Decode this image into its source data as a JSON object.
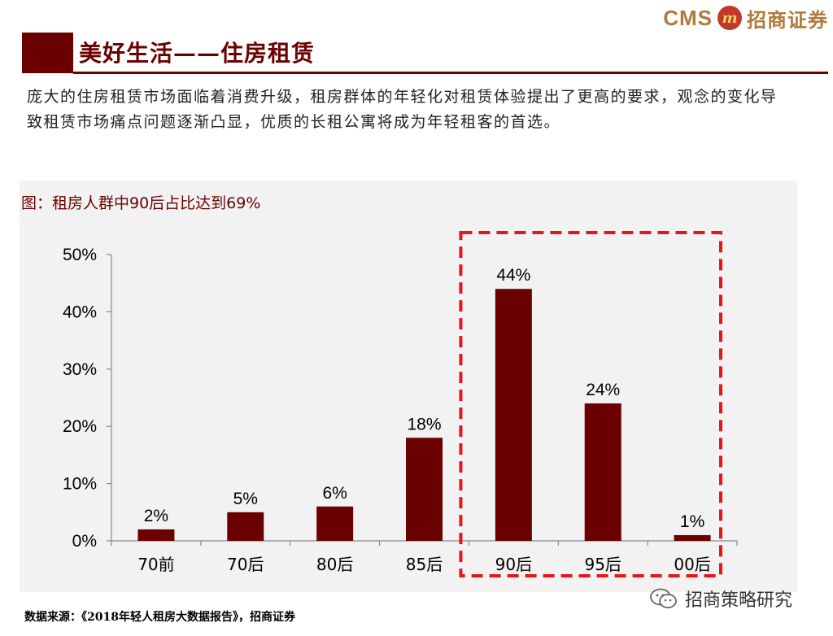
{
  "header": {
    "logo_latin": "CMS",
    "logo_mark": "m",
    "logo_cn": "招商证券",
    "title": "美好生活——住房租赁"
  },
  "intro_text": "庞大的住房租赁市场面临着消费升级，租房群体的年轻化对租赁体验提出了更高的要求，观念的变化导致租赁市场痛点问题逐渐凸显，优质的长租公寓将成为年轻租客的首选。",
  "chart_title": "图：租房人群中90后占比达到69%",
  "source_text": "数据来源：《2018年轻人租房大数据报告》，招商证券",
  "watermark": "招商策略研究",
  "colors": {
    "brand": "#6b0000",
    "bar": "#6b0000",
    "highlight_box": "#e8141b",
    "panel_bg": "#f2f2f2"
  },
  "chart_data": {
    "type": "bar",
    "title": "图：租房人群中90后占比达到69%",
    "categories": [
      "70前",
      "70后",
      "80后",
      "85后",
      "90后",
      "95后",
      "00后"
    ],
    "values": [
      2,
      5,
      6,
      18,
      44,
      24,
      1
    ],
    "data_labels": [
      "2%",
      "5%",
      "6%",
      "18%",
      "44%",
      "24%",
      "1%"
    ],
    "yticks": [
      0,
      10,
      20,
      30,
      40,
      50
    ],
    "ytick_labels": [
      "0%",
      "10%",
      "20%",
      "30%",
      "40%",
      "50%"
    ],
    "ylim": [
      0,
      50
    ],
    "grid": false,
    "highlight_categories": [
      "90后",
      "95后",
      "00后"
    ]
  }
}
